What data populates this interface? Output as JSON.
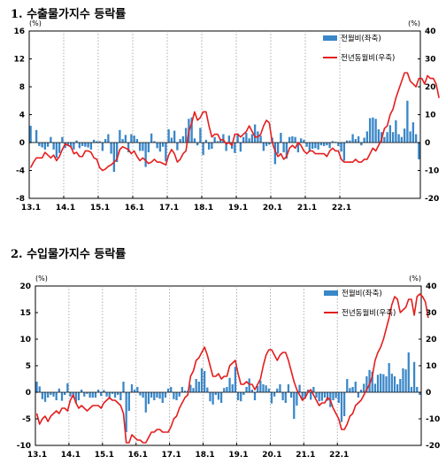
{
  "titles": {
    "export": "1. 수출물가지수 등락률",
    "import": "2. 수입물가지수 등락률"
  },
  "colors": {
    "bar": "#3a87c8",
    "line": "#e41e1e",
    "grid": "#999999",
    "axis": "#000000"
  },
  "chart_data": [
    {
      "type": "bar+line",
      "title": "1. 수출물가지수 등락률",
      "left_unit": "(%)",
      "right_unit": "(%)",
      "ylim_left": [
        -8,
        16
      ],
      "yticks_left": [
        "16",
        "12",
        "8",
        "4",
        "0",
        "-4",
        "-8"
      ],
      "ylim_right": [
        -20,
        40
      ],
      "yticks_right": [
        "40",
        "30",
        "20",
        "10",
        "0",
        "-10",
        "-20"
      ],
      "x_start": "13.1",
      "x_tick_labels": [
        "13.1",
        "14.1",
        "15.1",
        "16.1",
        "17.1",
        "18.1",
        "19.1",
        "20.1",
        "21.1",
        "22.1"
      ],
      "grid": "vertical dotted at year starts",
      "legend_position": "top-right",
      "series": [
        {
          "name": "전월비(좌축)",
          "kind": "bar",
          "axis": "left",
          "values": [
            2.4,
            0.1,
            1.8,
            -0.5,
            -0.7,
            -1.0,
            -0.6,
            0.8,
            -1.0,
            -2.2,
            -1.5,
            0.8,
            -0.8,
            -0.5,
            -0.7,
            -1.0,
            0.3,
            -0.8,
            -0.5,
            -0.6,
            -0.7,
            -1.0,
            0.4,
            0.2,
            0.2,
            -1.2,
            0.5,
            1.2,
            -1.6,
            -4.2,
            -2.8,
            1.8,
            0.5,
            1.1,
            -1.4,
            1.2,
            1.0,
            0.5,
            -1.2,
            -1.2,
            -3.5,
            -1.4,
            1.3,
            0.2,
            -0.8,
            -1.3,
            -0.6,
            -2.7,
            1.9,
            0.7,
            1.7,
            -1.1,
            0.5,
            0.9,
            2.1,
            3.4,
            3.6,
            0.6,
            -0.4,
            2.1,
            -1.8,
            0.4,
            -1.0,
            -0.9,
            0.8,
            0.2,
            0.5,
            1.2,
            -1.2,
            1.0,
            -0.9,
            -1.5,
            1.3,
            -1.3,
            0.8,
            1.4,
            0.6,
            1.2,
            2.6,
            1.6,
            1.0,
            -1.2,
            -0.5,
            -0.3,
            0.7,
            -3.1,
            -1.6,
            1.4,
            -1.4,
            -2.3,
            0.8,
            0.9,
            0.8,
            -1.4,
            0.6,
            0.4,
            -0.6,
            -1.3,
            -0.9,
            -0.8,
            -1.0,
            -0.4,
            -0.5,
            -0.4,
            -0.8,
            0.2,
            0.1,
            -0.5,
            -1.3,
            -2.6,
            0.3,
            0.3,
            1.2,
            0.5,
            0.9,
            -0.4,
            0.7,
            1.6,
            3.5,
            3.6,
            3.4,
            1.9,
            1.5,
            0.8,
            1.5,
            2.5,
            1.5,
            3.2,
            1.2,
            0.8,
            2.0,
            6.0,
            1.6,
            2.9,
            1.2,
            -2.4
          ]
        },
        {
          "name": "전년동월비(우축)",
          "kind": "line",
          "axis": "right",
          "values": [
            -9,
            -7,
            -5.5,
            -5.5,
            -5.5,
            -3.5,
            -4.5,
            -5.5,
            -4.5,
            -6.5,
            -5,
            -2.5,
            -0.5,
            -1,
            -1.5,
            -4,
            -3.5,
            -5,
            -5,
            -3,
            -3,
            -3.5,
            -5.5,
            -6,
            -9,
            -10,
            -9.5,
            -8.5,
            -8,
            -7,
            -6,
            -2.5,
            -1.5,
            -2,
            -2.5,
            -4,
            -3,
            -5,
            -6.5,
            -5.5,
            -6.5,
            -7.5,
            -7,
            -6,
            -7,
            -7,
            -7.5,
            -8,
            -4.5,
            -2.5,
            -4,
            -7,
            -6,
            -4,
            -3,
            4,
            7,
            11,
            8,
            9,
            11,
            11,
            6,
            2,
            3,
            3,
            1,
            1,
            -0.5,
            0,
            -1,
            3,
            3,
            2,
            3,
            4,
            6,
            4,
            2,
            2,
            3,
            6,
            8,
            7,
            0,
            -3,
            -5,
            -4,
            -6,
            -5,
            -2,
            -1,
            -2,
            0,
            -1,
            -3,
            -4,
            -3,
            -3,
            -4,
            -4,
            -4,
            -4,
            -5,
            -3,
            -2,
            -3,
            -3,
            -6,
            -7,
            -7,
            -7,
            -7,
            -6,
            -7,
            -7,
            -6,
            -6,
            -4,
            -2,
            -3,
            -1,
            1,
            5,
            6,
            10,
            12,
            16,
            19,
            22,
            25,
            25,
            22,
            21,
            20,
            23,
            23,
            21,
            24,
            23,
            23,
            21,
            16
          ]
        }
      ]
    },
    {
      "type": "bar+line",
      "title": "2. 수입물가지수 등락률",
      "left_unit": "(%)",
      "right_unit": "(%)",
      "ylim_left": [
        -10,
        20
      ],
      "yticks_left": [
        "20",
        "15",
        "10",
        "5",
        "0",
        "-5",
        "-10"
      ],
      "ylim_right": [
        -20,
        40
      ],
      "yticks_right": [
        "40",
        "30",
        "20",
        "10",
        "0",
        "-10",
        "-20"
      ],
      "x_start": "13.1",
      "x_tick_labels": [
        "13.1",
        "14.1",
        "15.1",
        "16.1",
        "17.1",
        "18.1",
        "19.1",
        "20.1",
        "21.1",
        "22.1"
      ],
      "grid": "vertical dotted at year starts",
      "legend_position": "top-right",
      "series": [
        {
          "name": "전월비(좌축)",
          "kind": "bar",
          "axis": "left",
          "values": [
            2.0,
            1.1,
            -1.3,
            -1.8,
            -1.0,
            -0.5,
            -0.8,
            -1.5,
            0.7,
            -1.6,
            -0.5,
            1.7,
            -0.8,
            -1.0,
            -2.0,
            -1.5,
            0.5,
            -0.8,
            -0.3,
            -1.0,
            -1.0,
            -1.0,
            0.5,
            -0.7,
            0.4,
            -0.8,
            -1.2,
            -0.3,
            -1.0,
            -0.5,
            -1.5,
            2.0,
            -7.5,
            -3.5,
            1.5,
            0.5,
            1.0,
            -0.6,
            -1.0,
            -3.8,
            -2.2,
            -1.0,
            -1.5,
            -1.0,
            -1.2,
            -2.0,
            -1.0,
            0.7,
            1.0,
            -1.3,
            -1.5,
            -0.8,
            1.0,
            0.3,
            0.3,
            1.4,
            0.8,
            2.5,
            2.0,
            4.5,
            4.0,
            0.9,
            -1.7,
            -2.3,
            -0.5,
            -1.4,
            -2.0,
            0.8,
            1.0,
            2.7,
            1.5,
            4.8,
            -1.5,
            -1.7,
            -0.5,
            1.0,
            2.6,
            0.5,
            -1.5,
            1.2,
            2.2,
            1.5,
            1.3,
            0.7,
            -2.1,
            -0.8,
            0.7,
            1.5,
            -1.5,
            -2.0,
            1.5,
            -1.0,
            -5.0,
            -2.5,
            1.4,
            -1.5,
            -1.2,
            0.5,
            -1.4,
            1.0,
            -1.0,
            -1.7,
            -1.6,
            -1.0,
            -1.6,
            -2.8,
            -1.5,
            -1.1,
            -2.0,
            -5.6,
            -4.5,
            2.5,
            0.8,
            1.0,
            2.0,
            -1.0,
            0.5,
            1.6,
            3.0,
            4.2,
            3.9,
            1.6,
            3.3,
            3.5,
            3.4,
            3.0,
            5.5,
            3.5,
            3.0,
            1.5,
            2.5,
            4.5,
            4.3,
            7.5,
            1.0,
            5.7,
            1.0,
            -0.5
          ]
        },
        {
          "name": "전년동월비(우축)",
          "kind": "line",
          "axis": "right",
          "values": [
            -8,
            -12,
            -10,
            -9,
            -11,
            -9,
            -8,
            -7,
            -8,
            -6,
            -6,
            -7,
            -3,
            -1,
            -4,
            -6,
            -5,
            -6,
            -7,
            -6,
            -5,
            -5,
            -5,
            -6,
            -4,
            -3,
            -2,
            -3,
            -3,
            -4,
            -5,
            -8,
            -19,
            -19,
            -16,
            -17,
            -18,
            -18,
            -19,
            -19,
            -17,
            -15,
            -15,
            -14,
            -14,
            -15,
            -15,
            -15,
            -13,
            -10,
            -9,
            -6,
            -4,
            -2,
            -1,
            6,
            8,
            12,
            13,
            15,
            17,
            14,
            10,
            6,
            6,
            7,
            5,
            6,
            6,
            10,
            11,
            12,
            7,
            3,
            3,
            4,
            3,
            3,
            1,
            3,
            5,
            10,
            14,
            16,
            16,
            14,
            12,
            14,
            15,
            15,
            12,
            8,
            4,
            1,
            -1,
            -3,
            -2,
            0,
            1,
            -1,
            -3,
            -5,
            -4,
            -4,
            -2,
            -3,
            -6,
            -8,
            -10,
            -14,
            -14,
            -12,
            -9,
            -8,
            -5,
            -4,
            -3,
            -1,
            1,
            3,
            6,
            12,
            15,
            17,
            20,
            24,
            28,
            33,
            36,
            35,
            30,
            31,
            32,
            35,
            35,
            29,
            36,
            37,
            36,
            34,
            28
          ]
        }
      ]
    }
  ]
}
